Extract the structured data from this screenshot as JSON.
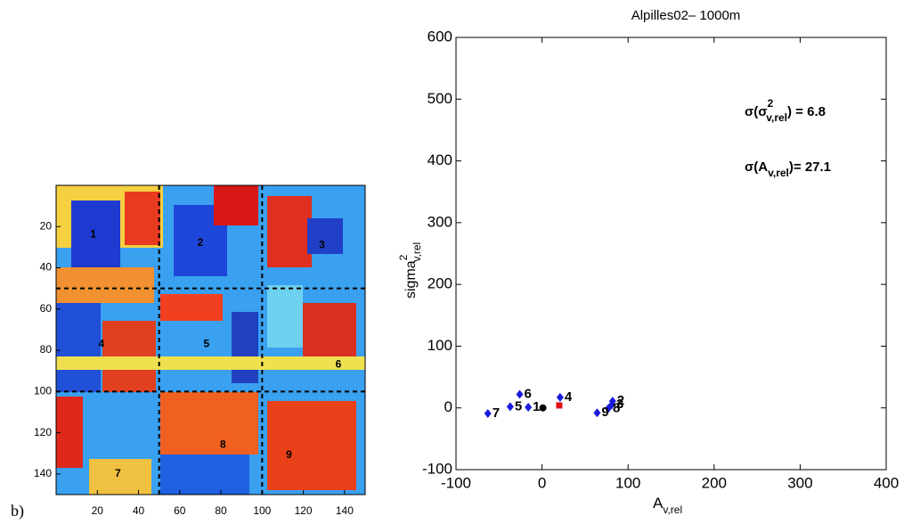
{
  "panel_label": "b)",
  "chart_data": [
    {
      "type": "image",
      "xlim": [
        0,
        150
      ],
      "ylim": [
        0,
        150
      ],
      "xticks": [
        20,
        40,
        60,
        80,
        100,
        120,
        140
      ],
      "yticks": [
        20,
        40,
        60,
        80,
        100,
        120,
        140
      ],
      "dividers": [
        50,
        100
      ],
      "regions": [
        {
          "label": "1",
          "x": 18,
          "y": 24
        },
        {
          "label": "2",
          "x": 70,
          "y": 28
        },
        {
          "label": "3",
          "x": 129,
          "y": 29
        },
        {
          "label": "4",
          "x": 22,
          "y": 77
        },
        {
          "label": "5",
          "x": 73,
          "y": 77
        },
        {
          "label": "6",
          "x": 137,
          "y": 87
        },
        {
          "label": "7",
          "x": 30,
          "y": 140
        },
        {
          "label": "8",
          "x": 81,
          "y": 126
        },
        {
          "label": "9",
          "x": 113,
          "y": 131
        }
      ]
    },
    {
      "type": "scatter",
      "title": "Alpilles02– 1000m",
      "x_label": [
        "A",
        "v,rel"
      ],
      "y_label": [
        "sigma",
        "2",
        "v,rel"
      ],
      "annotations": [
        [
          "σ(σ",
          "2",
          "v,rel",
          ") = 6.8"
        ],
        [
          "σ(A",
          "v,rel",
          ")=  27.1"
        ]
      ],
      "xlim": [
        -100,
        400
      ],
      "ylim": [
        -100,
        600
      ],
      "xticks": [
        -100,
        0,
        100,
        200,
        300,
        400
      ],
      "yticks": [
        -100,
        0,
        100,
        200,
        300,
        400,
        500,
        600
      ],
      "series": [
        {
          "color": "#1a1adc",
          "marker": "diamond",
          "x": [
            -16,
            82,
            81,
            21,
            -37,
            -26,
            -63,
            77,
            64
          ],
          "y": [
            1,
            11,
            5,
            17,
            2,
            22,
            -9,
            -1,
            -8
          ],
          "labels": [
            "1",
            "2",
            "3",
            "4",
            "5",
            "6",
            "7",
            "8",
            "9"
          ]
        },
        {
          "color": "#000000",
          "marker": "circle",
          "x": [
            1
          ],
          "y": [
            0
          ]
        },
        {
          "color": "#e0101a",
          "marker": "square",
          "x": [
            20
          ],
          "y": [
            4
          ]
        }
      ]
    }
  ]
}
